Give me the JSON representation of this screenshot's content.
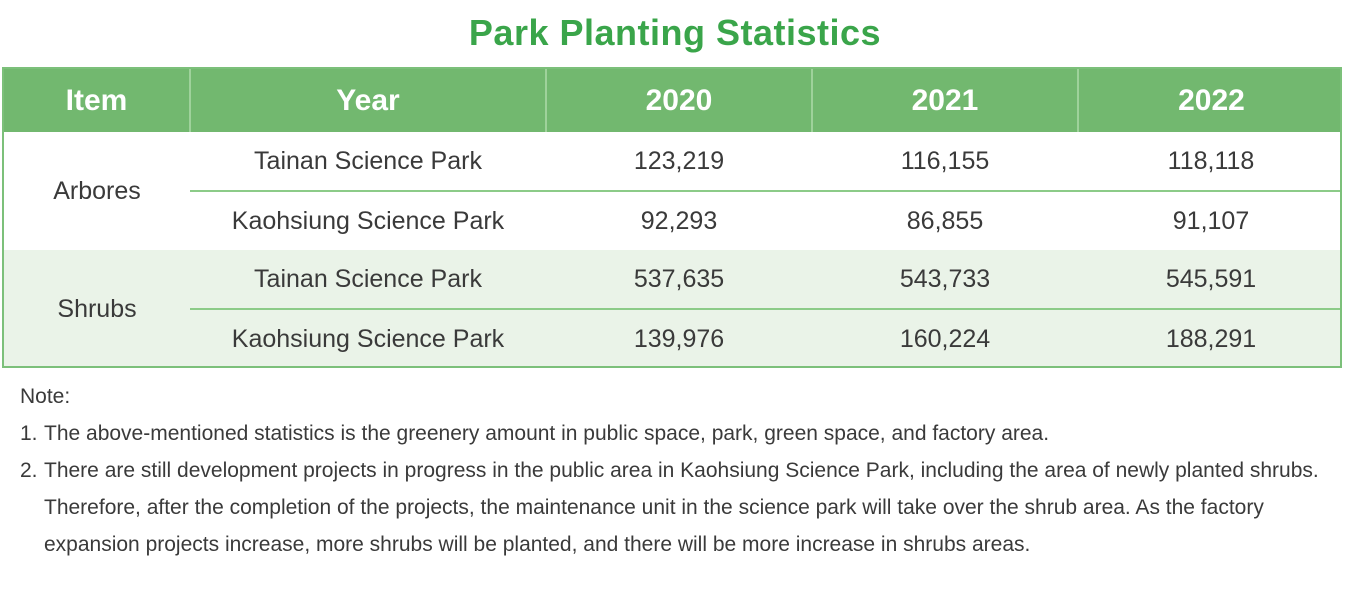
{
  "title": "Park Planting Statistics",
  "table": {
    "headers": [
      "Item",
      "Year",
      "2020",
      "2021",
      "2022"
    ],
    "groups": [
      {
        "item": "Arbores",
        "rows": [
          {
            "park": "Tainan Science Park",
            "values": [
              "123,219",
              "116,155",
              "118,118"
            ]
          },
          {
            "park": "Kaohsiung Science Park",
            "values": [
              "92,293",
              "86,855",
              "91,107"
            ]
          }
        ]
      },
      {
        "item": "Shrubs",
        "rows": [
          {
            "park": "Tainan Science Park",
            "values": [
              "537,635",
              "543,733",
              "545,591"
            ]
          },
          {
            "park": "Kaohsiung Science Park",
            "values": [
              "139,976",
              "160,224",
              "188,291"
            ]
          }
        ]
      }
    ]
  },
  "notes": {
    "heading": "Note:",
    "items": [
      {
        "num": "1.",
        "text": "The above-mentioned statistics is the greenery amount in public space, park, green space, and factory area."
      },
      {
        "num": "2.",
        "text": "There are still development projects in progress in the public area in Kaohsiung Science Park, including the area of newly planted shrubs. Therefore, after the completion of the projects, the maintenance unit in the science park will take over the shrub area. As the factory expansion projects increase, more shrubs will be planted, and there will be more increase in shrubs areas."
      }
    ]
  },
  "colors": {
    "title": "#3aa54a",
    "header_bg": "#72b86f",
    "alt_row_bg": "#eaf3e8",
    "border": "#7cc07a"
  }
}
